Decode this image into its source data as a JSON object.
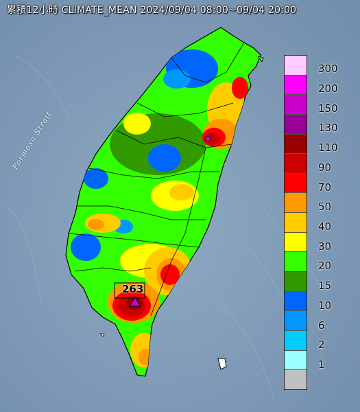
{
  "title": "累積12小時 CLIMATE_MEAN 2024/09/04 08:00~09/04 20:00",
  "strait_label": "Formosa Strait",
  "peak": {
    "value": "263"
  },
  "legend": {
    "items": [
      {
        "label": "300",
        "color": "#ffccff"
      },
      {
        "label": "200",
        "color": "#ff00ff"
      },
      {
        "label": "150",
        "color": "#cc00cc"
      },
      {
        "label": "130",
        "color": "#990099"
      },
      {
        "label": "110",
        "color": "#990000"
      },
      {
        "label": "90",
        "color": "#cc0000"
      },
      {
        "label": "70",
        "color": "#ff0000"
      },
      {
        "label": "50",
        "color": "#ff9900"
      },
      {
        "label": "40",
        "color": "#ffcc00"
      },
      {
        "label": "30",
        "color": "#ffff00"
      },
      {
        "label": "20",
        "color": "#33ff00"
      },
      {
        "label": "15",
        "color": "#339900"
      },
      {
        "label": "10",
        "color": "#0066ff"
      },
      {
        "label": "6",
        "color": "#0099ff"
      },
      {
        "label": "2",
        "color": "#00ccff"
      },
      {
        "label": "1",
        "color": "#99ffff"
      },
      {
        "label": "",
        "color": "#c0c0c0"
      }
    ]
  },
  "colors": {
    "sea": "#7f9bb8",
    "land_base": "#9bd06a"
  }
}
